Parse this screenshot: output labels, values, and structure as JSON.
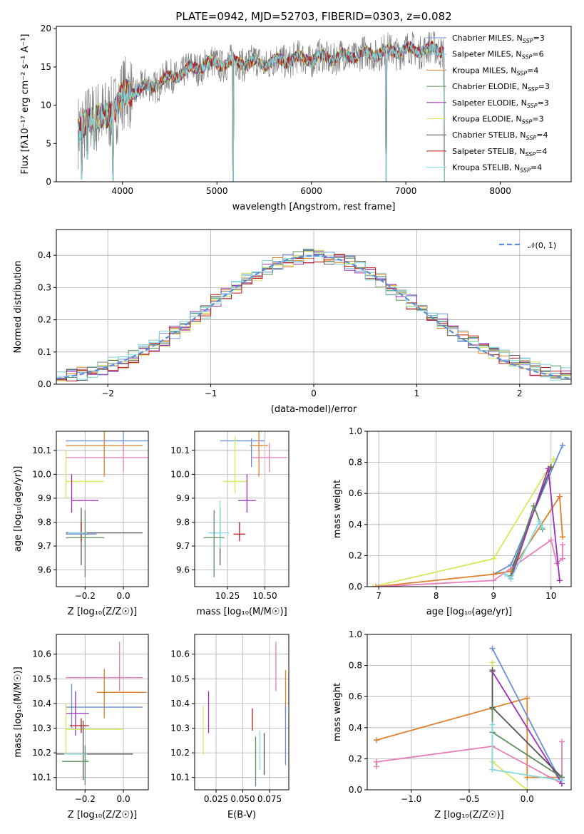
{
  "figure_title": "PLATE=0942, MJD=52703, FIBERID=0303, z=0.082",
  "colors": {
    "Chabrier MILES": "#6a8fd8",
    "Salpeter MILES": "#7ec7c7",
    "Kroupa MILES": "#e0802b",
    "Chabrier ELODIE": "#5f8f5f",
    "Salpeter ELODIE": "#9b30b8",
    "Kroupa ELODIE": "#d8e85a",
    "Chabrier STELIB": "#555555",
    "Salpeter STELIB": "#c01818",
    "Kroupa STELIB": "#84d8e0",
    "pink": "#e97cba",
    "gauss": "#5b8dd9",
    "data_spectrum": "#808080"
  },
  "chart_data": [
    {
      "id": "spectrum",
      "type": "line",
      "title": "PLATE=0942, MJD=52703, FIBERID=0303, z=0.082",
      "xlabel": "wavelength [Angstrom, rest frame]",
      "ylabel": "Flux [fλ10⁻¹⁷ erg cm⁻² s⁻¹ A⁻¹]",
      "xlim": [
        3300,
        8750
      ],
      "ylim": [
        0,
        20.3
      ],
      "xticks": [
        4000,
        5000,
        6000,
        7000,
        8000
      ],
      "yticks": [
        0,
        5,
        10,
        15,
        20
      ],
      "grid": false,
      "legend_position": "top-right",
      "legend": [
        {
          "name": "Chabrier MILES",
          "nssp": "3"
        },
        {
          "name": "Salpeter MILES",
          "nssp": "6"
        },
        {
          "name": "Kroupa MILES",
          "nssp": "4"
        },
        {
          "name": "Chabrier ELODIE",
          "nssp": "3"
        },
        {
          "name": "Salpeter ELODIE",
          "nssp": "3"
        },
        {
          "name": "Kroupa ELODIE",
          "nssp": "3"
        },
        {
          "name": "Chabrier STELIB",
          "nssp": "4"
        },
        {
          "name": "Salpeter STELIB",
          "nssp": "4"
        },
        {
          "name": "Kroupa STELIB",
          "nssp": "4"
        }
      ],
      "continuum": [
        [
          3530,
          6.2
        ],
        [
          3650,
          8.5
        ],
        [
          3800,
          8.2
        ],
        [
          3900,
          9.5
        ],
        [
          3950,
          10.0
        ],
        [
          4000,
          11.2
        ],
        [
          4100,
          11.8
        ],
        [
          4300,
          12.5
        ],
        [
          4500,
          13.6
        ],
        [
          4700,
          14.6
        ],
        [
          4900,
          15.4
        ],
        [
          5100,
          15.5
        ],
        [
          5300,
          15.6
        ],
        [
          5500,
          15.5
        ],
        [
          5800,
          16.0
        ],
        [
          6000,
          16.1
        ],
        [
          6200,
          16.2
        ],
        [
          6400,
          16.4
        ],
        [
          6600,
          16.7
        ],
        [
          6800,
          17.0
        ],
        [
          7000,
          17.2
        ],
        [
          7200,
          17.3
        ],
        [
          7410,
          17.3
        ]
      ],
      "model_range": [
        3530,
        7410
      ],
      "dips": [
        [
          3570,
          0.4
        ],
        [
          3630,
          3.0
        ],
        [
          3700,
          4.3
        ],
        [
          3900,
          0.2
        ],
        [
          5170,
          0.0
        ],
        [
          6790,
          0.0
        ],
        [
          7410,
          0.0
        ]
      ]
    },
    {
      "id": "residuals",
      "type": "line",
      "xlabel": "(data-model)/error",
      "ylabel": "Normed distribution",
      "xlim": [
        -2.5,
        2.5
      ],
      "ylim": [
        0,
        0.48
      ],
      "xticks": [
        -2,
        -1,
        0,
        1,
        2
      ],
      "yticks": [
        0.0,
        0.1,
        0.2,
        0.3,
        0.4
      ],
      "grid": true,
      "legend_position": "top-right",
      "legend": [
        "𝒩(0, 1)"
      ],
      "bin_width": 0.1
    },
    {
      "id": "age-vs-Z",
      "type": "scatter",
      "xlabel": "Z [log₁₀(Z/Z☉)]",
      "ylabel": "age  [log₁₀(age/yr)]",
      "xlim": [
        -0.35,
        0.13
      ],
      "ylim": [
        9.53,
        10.18
      ],
      "xticks": [
        -0.2,
        0.0
      ],
      "xticklabels": [
        "−0.2",
        "0.0"
      ],
      "yticks": [
        9.6,
        9.7,
        9.8,
        9.9,
        10.0,
        10.1
      ],
      "grid": true,
      "points": [
        {
          "c": "Chabrier MILES",
          "x": 0.0,
          "xerr": 0.3,
          "y": 10.14,
          "yerr": 0.04
        },
        {
          "c": "Kroupa MILES",
          "x": -0.1,
          "xerr": 0.2,
          "y": 10.12,
          "yerr": 0.13
        },
        {
          "c": "pink",
          "x": 0.0,
          "xerr": 0.3,
          "y": 10.07,
          "yerr": 0.06
        },
        {
          "c": "Kroupa ELODIE",
          "x": -0.3,
          "xerr": 0.0,
          "y": 10.0,
          "yerr": 0.1
        },
        {
          "c": "Kroupa ELODIE",
          "x": -0.2,
          "xerr": 0.1,
          "y": 9.97,
          "yerr": 0.0
        },
        {
          "c": "Salpeter ELODIE",
          "x": -0.27,
          "xerr": 0.0,
          "y": 9.92,
          "yerr": 0.08
        },
        {
          "c": "Salpeter ELODIE",
          "x": -0.2,
          "xerr": 0.07,
          "y": 9.89,
          "yerr": 0.0
        },
        {
          "c": "Chabrier STELIB",
          "x": -0.22,
          "xerr": 0.0,
          "y": 9.74,
          "yerr": 0.12
        },
        {
          "c": "Chabrier STELIB",
          "x": -0.1,
          "xerr": 0.2,
          "y": 9.755,
          "yerr": 0.0
        },
        {
          "c": "Salpeter STELIB",
          "x": -0.22,
          "xerr": 0.0,
          "y": 9.76,
          "yerr": 0.04
        },
        {
          "c": "Chabrier MILES",
          "x": -0.22,
          "xerr": 0.08,
          "y": 9.75,
          "yerr": 0.0
        },
        {
          "c": "Kroupa STELIB",
          "x": -0.24,
          "xerr": 0.05,
          "y": 9.755,
          "yerr": 0.0
        },
        {
          "c": "Chabrier ELODIE",
          "x": -0.2,
          "xerr": 0.0,
          "y": 9.71,
          "yerr": 0.14
        },
        {
          "c": "Chabrier ELODIE",
          "x": -0.2,
          "xerr": 0.1,
          "y": 9.735,
          "yerr": 0.0
        }
      ]
    },
    {
      "id": "age-vs-mass",
      "type": "scatter",
      "xlabel": "mass [log₁₀(M/M☉)]",
      "ylabel": "",
      "xlim": [
        10.03,
        10.66
      ],
      "ylim": [
        9.53,
        10.18
      ],
      "xticks": [
        10.25,
        10.5
      ],
      "xticklabels": [
        "10.25",
        "10.50"
      ],
      "yticks": [
        9.6,
        9.7,
        9.8,
        9.9,
        10.0,
        10.1
      ],
      "grid": true,
      "points": [
        {
          "c": "Chabrier MILES",
          "x": 10.35,
          "xerr": 0.15,
          "y": 10.14,
          "yerr": 0.0
        },
        {
          "c": "Chabrier MILES",
          "x": 10.41,
          "xerr": 0.0,
          "y": 10.09,
          "yerr": 0.06
        },
        {
          "c": "Kroupa MILES",
          "x": 10.46,
          "xerr": 0.06,
          "y": 10.12,
          "yerr": 0.13
        },
        {
          "c": "pink",
          "x": 10.53,
          "xerr": 0.12,
          "y": 10.07,
          "yerr": 0.06
        },
        {
          "c": "Kroupa ELODIE",
          "x": 10.3,
          "xerr": 0.0,
          "y": 10.04,
          "yerr": 0.12
        },
        {
          "c": "Kroupa ELODIE",
          "x": 10.3,
          "xerr": 0.08,
          "y": 9.97,
          "yerr": 0.0
        },
        {
          "c": "Salpeter ELODIE",
          "x": 10.38,
          "xerr": 0.0,
          "y": 9.92,
          "yerr": 0.08
        },
        {
          "c": "Salpeter ELODIE",
          "x": 10.38,
          "xerr": 0.06,
          "y": 9.89,
          "yerr": 0.0
        },
        {
          "c": "Chabrier STELIB",
          "x": 10.2,
          "xerr": 0.0,
          "y": 9.74,
          "yerr": 0.12
        },
        {
          "c": "Kroupa STELIB",
          "x": 10.2,
          "xerr": 0.0,
          "y": 9.79,
          "yerr": 0.1
        },
        {
          "c": "Kroupa STELIB",
          "x": 10.19,
          "xerr": 0.07,
          "y": 9.755,
          "yerr": 0.0
        },
        {
          "c": "Salpeter STELIB",
          "x": 10.33,
          "xerr": 0.0,
          "y": 9.76,
          "yerr": 0.04
        },
        {
          "c": "Salpeter STELIB",
          "x": 10.33,
          "xerr": 0.04,
          "y": 9.75,
          "yerr": 0.0
        },
        {
          "c": "Chabrier ELODIE",
          "x": 10.16,
          "xerr": 0.0,
          "y": 9.71,
          "yerr": 0.14
        },
        {
          "c": "Chabrier ELODIE",
          "x": 10.16,
          "xerr": 0.07,
          "y": 9.735,
          "yerr": 0.0
        }
      ]
    },
    {
      "id": "weight-vs-age",
      "type": "line",
      "xlabel": "age  [log₁₀(age/yr)]",
      "ylabel": "mass weight",
      "xlim": [
        6.8,
        10.35
      ],
      "ylim": [
        0,
        1
      ],
      "xticks": [
        7,
        8,
        9,
        10
      ],
      "yticks": [
        0.0,
        0.2,
        0.4,
        0.6,
        0.8,
        1.0
      ],
      "grid": true,
      "series": [
        {
          "c": "Kroupa ELODIE",
          "x": [
            6.9,
            9.0,
            10.05
          ],
          "y": [
            0.0,
            0.18,
            0.82
          ]
        },
        {
          "c": "Chabrier MILES",
          "x": [
            9.0,
            9.3,
            10.2
          ],
          "y": [
            0.08,
            0.14,
            0.91
          ]
        },
        {
          "c": "Chabrier STELIB",
          "x": [
            9.0,
            9.3,
            10.0
          ],
          "y": [
            0.08,
            0.1,
            0.77
          ]
        },
        {
          "c": "Kroupa MILES",
          "x": [
            6.95,
            9.0,
            9.3,
            10.15,
            10.2
          ],
          "y": [
            0.0,
            0.08,
            0.1,
            0.58,
            0.32
          ]
        },
        {
          "c": "pink",
          "x": [
            7.0,
            9.0,
            10.0,
            10.1,
            10.2,
            10.2
          ],
          "y": [
            0.0,
            0.04,
            0.3,
            0.15,
            0.18,
            0.27
          ]
        },
        {
          "c": "Salpeter ELODIE",
          "x": [
            9.3,
            9.95,
            10.15
          ],
          "y": [
            0.05,
            0.76,
            0.04
          ]
        },
        {
          "c": "Chabrier ELODIE",
          "x": [
            9.3,
            9.7,
            9.85
          ],
          "y": [
            0.07,
            0.52,
            0.37
          ]
        },
        {
          "c": "Kroupa STELIB",
          "x": [
            9.2,
            9.3,
            9.8,
            9.85
          ],
          "y": [
            0.08,
            0.05,
            0.42,
            0.38
          ]
        }
      ]
    },
    {
      "id": "mass-vs-Z",
      "type": "scatter",
      "xlabel": "Z [log₁₀(Z/Z☉)]",
      "ylabel": "mass [log₁₀(M/M☉)]",
      "xlim": [
        -0.35,
        0.13
      ],
      "ylim": [
        10.05,
        10.68
      ],
      "xticks": [
        -0.2,
        0.0
      ],
      "xticklabels": [
        "−0.2",
        "0.0"
      ],
      "yticks": [
        10.1,
        10.2,
        10.3,
        10.4,
        10.5,
        10.6
      ],
      "grid": true,
      "points": [
        {
          "c": "pink",
          "x": -0.02,
          "xerr": 0.0,
          "y": 10.55,
          "yerr": 0.1
        },
        {
          "c": "pink",
          "x": -0.1,
          "xerr": 0.2,
          "y": 10.505,
          "yerr": 0.0
        },
        {
          "c": "Kroupa MILES",
          "x": -0.1,
          "xerr": 0.0,
          "y": 10.44,
          "yerr": 0.1
        },
        {
          "c": "Kroupa MILES",
          "x": -0.01,
          "xerr": 0.13,
          "y": 10.445,
          "yerr": 0.0
        },
        {
          "c": "Chabrier MILES",
          "x": -0.27,
          "xerr": 0.0,
          "y": 10.39,
          "yerr": 0.09
        },
        {
          "c": "Chabrier MILES",
          "x": -0.1,
          "xerr": 0.2,
          "y": 10.385,
          "yerr": 0.0
        },
        {
          "c": "Salpeter ELODIE",
          "x": -0.25,
          "xerr": 0.0,
          "y": 10.36,
          "yerr": 0.09
        },
        {
          "c": "Salpeter ELODIE",
          "x": -0.24,
          "xerr": 0.06,
          "y": 10.36,
          "yerr": 0.0
        },
        {
          "c": "Kroupa ELODIE",
          "x": -0.3,
          "xerr": 0.0,
          "y": 10.3,
          "yerr": 0.1
        },
        {
          "c": "Kroupa ELODIE",
          "x": -0.15,
          "xerr": 0.15,
          "y": 10.295,
          "yerr": 0.0
        },
        {
          "c": "Salpeter STELIB",
          "x": -0.23,
          "xerr": 0.05,
          "y": 10.31,
          "yerr": 0.0
        },
        {
          "c": "Salpeter STELIB",
          "x": -0.22,
          "xerr": 0.0,
          "y": 10.31,
          "yerr": 0.03
        },
        {
          "c": "Chabrier STELIB",
          "x": -0.21,
          "xerr": 0.0,
          "y": 10.21,
          "yerr": 0.12
        },
        {
          "c": "Chabrier STELIB",
          "x": -0.15,
          "xerr": 0.2,
          "y": 10.195,
          "yerr": 0.0
        },
        {
          "c": "Kroupa STELIB",
          "x": -0.25,
          "xerr": 0.06,
          "y": 10.195,
          "yerr": 0.0
        },
        {
          "c": "Chabrier ELODIE",
          "x": -0.2,
          "xerr": 0.0,
          "y": 10.15,
          "yerr": 0.08
        },
        {
          "c": "Chabrier ELODIE",
          "x": -0.25,
          "xerr": 0.07,
          "y": 10.165,
          "yerr": 0.0
        }
      ]
    },
    {
      "id": "mass-vs-EBV",
      "type": "scatter",
      "xlabel": "E(B-V)",
      "ylabel": "",
      "xlim": [
        0.005,
        0.093
      ],
      "ylim": [
        10.05,
        10.68
      ],
      "xticks": [
        0.025,
        0.05,
        0.075
      ],
      "xticklabels": [
        "0.025",
        "0.050",
        "0.075"
      ],
      "yticks": [
        10.1,
        10.2,
        10.3,
        10.4,
        10.5,
        10.6
      ],
      "grid": true,
      "points": [
        {
          "c": "Kroupa ELODIE",
          "x": 0.013,
          "xerr": 0.0,
          "y": 10.29,
          "yerr": 0.1
        },
        {
          "c": "Salpeter ELODIE",
          "x": 0.018,
          "xerr": 0.0,
          "y": 10.365,
          "yerr": 0.085
        },
        {
          "c": "Salpeter STELIB",
          "x": 0.059,
          "xerr": 0.0,
          "y": 10.335,
          "yerr": 0.045
        },
        {
          "c": "Chabrier ELODIE",
          "x": 0.062,
          "xerr": 0.0,
          "y": 10.165,
          "yerr": 0.1
        },
        {
          "c": "Kroupa STELIB",
          "x": 0.066,
          "xerr": 0.0,
          "y": 10.21,
          "yerr": 0.08
        },
        {
          "c": "Chabrier STELIB",
          "x": 0.07,
          "xerr": 0.0,
          "y": 10.195,
          "yerr": 0.085
        },
        {
          "c": "pink",
          "x": 0.081,
          "xerr": 0.0,
          "y": 10.55,
          "yerr": 0.1
        },
        {
          "c": "Kroupa MILES",
          "x": 0.09,
          "xerr": 0.0,
          "y": 10.445,
          "yerr": 0.09
        },
        {
          "c": "Chabrier MILES",
          "x": 0.09,
          "xerr": 0.0,
          "y": 10.27,
          "yerr": 0.12
        }
      ]
    },
    {
      "id": "weight-vs-Z",
      "type": "line",
      "xlabel": "Z [log₁₀(Z/Z☉)]",
      "ylabel": "mass weight",
      "xlim": [
        -1.38,
        0.38
      ],
      "ylim": [
        0,
        1
      ],
      "xticks": [
        -1.0,
        -0.5,
        0.0
      ],
      "xticklabels": [
        "−1.0",
        "−0.5",
        "0.0"
      ],
      "yticks": [
        0.0,
        0.2,
        0.4,
        0.6,
        0.8,
        1.0
      ],
      "grid": true,
      "series": [
        {
          "c": "Kroupa MILES",
          "x": [
            -1.3,
            0.0,
            0.0,
            0.3
          ],
          "y": [
            0.32,
            0.59,
            0.08,
            0.08
          ]
        },
        {
          "c": "pink",
          "x": [
            -1.3,
            -1.3,
            -0.3,
            0.3,
            0.3
          ],
          "y": [
            0.15,
            0.18,
            0.28,
            0.04,
            0.31
          ]
        },
        {
          "c": "Chabrier MILES",
          "x": [
            -0.3,
            0.3
          ],
          "y": [
            0.91,
            0.04
          ]
        },
        {
          "c": "Salpeter ELODIE",
          "x": [
            -0.3,
            0.3
          ],
          "y": [
            0.76,
            0.04
          ]
        },
        {
          "c": "Kroupa ELODIE",
          "x": [
            -0.3,
            -0.3,
            0.0
          ],
          "y": [
            0.82,
            0.18,
            0.0
          ]
        },
        {
          "c": "Chabrier STELIB",
          "x": [
            -0.3,
            -0.3,
            0.3
          ],
          "y": [
            0.77,
            0.53,
            0.08
          ]
        },
        {
          "c": "Chabrier ELODIE",
          "x": [
            -0.3,
            -0.3,
            0.3
          ],
          "y": [
            0.52,
            0.37,
            0.08
          ]
        },
        {
          "c": "Kroupa STELIB",
          "x": [
            -0.3,
            -0.3,
            0.3
          ],
          "y": [
            0.42,
            0.13,
            0.06
          ]
        }
      ]
    }
  ]
}
